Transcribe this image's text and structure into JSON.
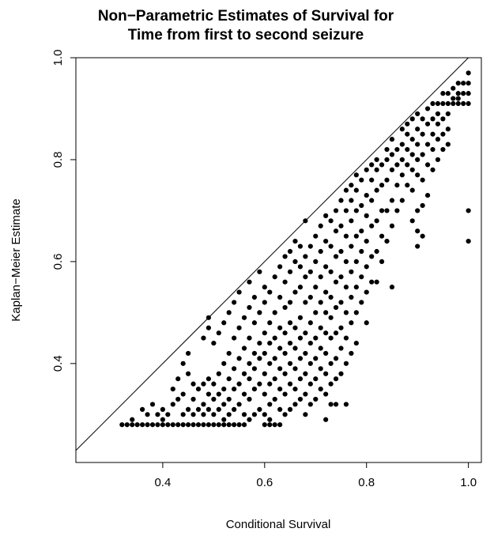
{
  "chart_data": {
    "type": "scatter",
    "title": [
      "Non−Parametric Estimates of Survival for",
      "Time from first to second seizure"
    ],
    "xlabel": "Conditional Survival",
    "ylabel": "Kaplan−Meier Estimate",
    "xlim": [
      0.2295,
      1.0254
    ],
    "ylim": [
      0.2059,
      1.0
    ],
    "xticks": [
      0.4,
      0.6,
      0.8,
      1.0
    ],
    "xtick_labels": [
      "0.4",
      "0.6",
      "0.8",
      "1.0"
    ],
    "yticks": [
      0.4,
      0.6,
      0.8,
      1.0
    ],
    "ytick_labels": [
      "0.4",
      "0.6",
      "0.8",
      "1.0"
    ],
    "reference_line": "y = x",
    "point_color": "#000000",
    "points": [
      [
        0.32,
        0.28
      ],
      [
        0.33,
        0.28
      ],
      [
        0.34,
        0.28
      ],
      [
        0.34,
        0.29
      ],
      [
        0.35,
        0.28
      ],
      [
        0.36,
        0.28
      ],
      [
        0.36,
        0.31
      ],
      [
        0.37,
        0.28
      ],
      [
        0.37,
        0.3
      ],
      [
        0.38,
        0.28
      ],
      [
        0.38,
        0.32
      ],
      [
        0.39,
        0.28
      ],
      [
        0.39,
        0.3
      ],
      [
        0.4,
        0.28
      ],
      [
        0.4,
        0.29
      ],
      [
        0.4,
        0.31
      ],
      [
        0.41,
        0.28
      ],
      [
        0.41,
        0.3
      ],
      [
        0.42,
        0.28
      ],
      [
        0.42,
        0.32
      ],
      [
        0.42,
        0.35
      ],
      [
        0.43,
        0.28
      ],
      [
        0.43,
        0.33
      ],
      [
        0.43,
        0.37
      ],
      [
        0.44,
        0.28
      ],
      [
        0.44,
        0.3
      ],
      [
        0.44,
        0.34
      ],
      [
        0.44,
        0.4
      ],
      [
        0.45,
        0.28
      ],
      [
        0.45,
        0.31
      ],
      [
        0.45,
        0.38
      ],
      [
        0.45,
        0.42
      ],
      [
        0.46,
        0.28
      ],
      [
        0.46,
        0.3
      ],
      [
        0.46,
        0.33
      ],
      [
        0.46,
        0.36
      ],
      [
        0.47,
        0.28
      ],
      [
        0.47,
        0.31
      ],
      [
        0.47,
        0.35
      ],
      [
        0.48,
        0.28
      ],
      [
        0.48,
        0.3
      ],
      [
        0.48,
        0.32
      ],
      [
        0.48,
        0.36
      ],
      [
        0.48,
        0.45
      ],
      [
        0.49,
        0.28
      ],
      [
        0.49,
        0.31
      ],
      [
        0.49,
        0.34
      ],
      [
        0.49,
        0.37
      ],
      [
        0.49,
        0.47
      ],
      [
        0.49,
        0.49
      ],
      [
        0.5,
        0.28
      ],
      [
        0.5,
        0.3
      ],
      [
        0.5,
        0.33
      ],
      [
        0.5,
        0.36
      ],
      [
        0.5,
        0.44
      ],
      [
        0.51,
        0.28
      ],
      [
        0.51,
        0.31
      ],
      [
        0.51,
        0.34
      ],
      [
        0.51,
        0.38
      ],
      [
        0.51,
        0.46
      ],
      [
        0.52,
        0.28
      ],
      [
        0.52,
        0.29
      ],
      [
        0.52,
        0.32
      ],
      [
        0.52,
        0.35
      ],
      [
        0.52,
        0.4
      ],
      [
        0.52,
        0.48
      ],
      [
        0.53,
        0.28
      ],
      [
        0.53,
        0.3
      ],
      [
        0.53,
        0.33
      ],
      [
        0.53,
        0.37
      ],
      [
        0.53,
        0.42
      ],
      [
        0.53,
        0.5
      ],
      [
        0.54,
        0.28
      ],
      [
        0.54,
        0.31
      ],
      [
        0.54,
        0.35
      ],
      [
        0.54,
        0.39
      ],
      [
        0.54,
        0.45
      ],
      [
        0.54,
        0.52
      ],
      [
        0.55,
        0.28
      ],
      [
        0.55,
        0.32
      ],
      [
        0.55,
        0.36
      ],
      [
        0.55,
        0.41
      ],
      [
        0.55,
        0.47
      ],
      [
        0.55,
        0.54
      ],
      [
        0.56,
        0.28
      ],
      [
        0.56,
        0.3
      ],
      [
        0.56,
        0.34
      ],
      [
        0.56,
        0.38
      ],
      [
        0.56,
        0.43
      ],
      [
        0.56,
        0.49
      ],
      [
        0.57,
        0.29
      ],
      [
        0.57,
        0.33
      ],
      [
        0.57,
        0.37
      ],
      [
        0.57,
        0.4
      ],
      [
        0.57,
        0.45
      ],
      [
        0.57,
        0.51
      ],
      [
        0.57,
        0.56
      ],
      [
        0.58,
        0.3
      ],
      [
        0.58,
        0.35
      ],
      [
        0.58,
        0.39
      ],
      [
        0.58,
        0.42
      ],
      [
        0.58,
        0.48
      ],
      [
        0.58,
        0.53
      ],
      [
        0.59,
        0.31
      ],
      [
        0.59,
        0.36
      ],
      [
        0.59,
        0.41
      ],
      [
        0.59,
        0.44
      ],
      [
        0.59,
        0.5
      ],
      [
        0.59,
        0.58
      ],
      [
        0.6,
        0.28
      ],
      [
        0.6,
        0.3
      ],
      [
        0.6,
        0.34
      ],
      [
        0.6,
        0.38
      ],
      [
        0.6,
        0.42
      ],
      [
        0.6,
        0.46
      ],
      [
        0.6,
        0.52
      ],
      [
        0.6,
        0.55
      ],
      [
        0.61,
        0.28
      ],
      [
        0.61,
        0.29
      ],
      [
        0.61,
        0.32
      ],
      [
        0.61,
        0.36
      ],
      [
        0.61,
        0.4
      ],
      [
        0.61,
        0.44
      ],
      [
        0.61,
        0.48
      ],
      [
        0.61,
        0.54
      ],
      [
        0.62,
        0.28
      ],
      [
        0.62,
        0.33
      ],
      [
        0.62,
        0.37
      ],
      [
        0.62,
        0.41
      ],
      [
        0.62,
        0.45
      ],
      [
        0.62,
        0.5
      ],
      [
        0.62,
        0.57
      ],
      [
        0.63,
        0.28
      ],
      [
        0.63,
        0.31
      ],
      [
        0.63,
        0.35
      ],
      [
        0.63,
        0.39
      ],
      [
        0.63,
        0.43
      ],
      [
        0.63,
        0.47
      ],
      [
        0.63,
        0.53
      ],
      [
        0.63,
        0.59
      ],
      [
        0.64,
        0.3
      ],
      [
        0.64,
        0.34
      ],
      [
        0.64,
        0.38
      ],
      [
        0.64,
        0.42
      ],
      [
        0.64,
        0.46
      ],
      [
        0.64,
        0.51
      ],
      [
        0.64,
        0.56
      ],
      [
        0.64,
        0.61
      ],
      [
        0.65,
        0.31
      ],
      [
        0.65,
        0.36
      ],
      [
        0.65,
        0.4
      ],
      [
        0.65,
        0.44
      ],
      [
        0.65,
        0.48
      ],
      [
        0.65,
        0.52
      ],
      [
        0.65,
        0.58
      ],
      [
        0.65,
        0.62
      ],
      [
        0.66,
        0.32
      ],
      [
        0.66,
        0.35
      ],
      [
        0.66,
        0.39
      ],
      [
        0.66,
        0.43
      ],
      [
        0.66,
        0.47
      ],
      [
        0.66,
        0.54
      ],
      [
        0.66,
        0.6
      ],
      [
        0.66,
        0.64
      ],
      [
        0.67,
        0.33
      ],
      [
        0.67,
        0.37
      ],
      [
        0.67,
        0.41
      ],
      [
        0.67,
        0.45
      ],
      [
        0.67,
        0.49
      ],
      [
        0.67,
        0.55
      ],
      [
        0.67,
        0.59
      ],
      [
        0.67,
        0.63
      ],
      [
        0.68,
        0.3
      ],
      [
        0.68,
        0.34
      ],
      [
        0.68,
        0.38
      ],
      [
        0.68,
        0.42
      ],
      [
        0.68,
        0.46
      ],
      [
        0.68,
        0.52
      ],
      [
        0.68,
        0.57
      ],
      [
        0.68,
        0.61
      ],
      [
        0.68,
        0.68
      ],
      [
        0.69,
        0.32
      ],
      [
        0.69,
        0.36
      ],
      [
        0.69,
        0.4
      ],
      [
        0.69,
        0.44
      ],
      [
        0.69,
        0.48
      ],
      [
        0.69,
        0.53
      ],
      [
        0.69,
        0.58
      ],
      [
        0.69,
        0.63
      ],
      [
        0.7,
        0.33
      ],
      [
        0.7,
        0.37
      ],
      [
        0.7,
        0.41
      ],
      [
        0.7,
        0.45
      ],
      [
        0.7,
        0.5
      ],
      [
        0.7,
        0.55
      ],
      [
        0.7,
        0.6
      ],
      [
        0.7,
        0.65
      ],
      [
        0.71,
        0.35
      ],
      [
        0.71,
        0.39
      ],
      [
        0.71,
        0.43
      ],
      [
        0.71,
        0.47
      ],
      [
        0.71,
        0.52
      ],
      [
        0.71,
        0.57
      ],
      [
        0.71,
        0.62
      ],
      [
        0.71,
        0.67
      ],
      [
        0.72,
        0.29
      ],
      [
        0.72,
        0.34
      ],
      [
        0.72,
        0.38
      ],
      [
        0.72,
        0.42
      ],
      [
        0.72,
        0.46
      ],
      [
        0.72,
        0.5
      ],
      [
        0.72,
        0.54
      ],
      [
        0.72,
        0.59
      ],
      [
        0.72,
        0.64
      ],
      [
        0.72,
        0.69
      ],
      [
        0.73,
        0.32
      ],
      [
        0.73,
        0.36
      ],
      [
        0.73,
        0.4
      ],
      [
        0.73,
        0.45
      ],
      [
        0.73,
        0.49
      ],
      [
        0.73,
        0.53
      ],
      [
        0.73,
        0.58
      ],
      [
        0.73,
        0.63
      ],
      [
        0.73,
        0.68
      ],
      [
        0.74,
        0.32
      ],
      [
        0.74,
        0.37
      ],
      [
        0.74,
        0.41
      ],
      [
        0.74,
        0.46
      ],
      [
        0.74,
        0.51
      ],
      [
        0.74,
        0.56
      ],
      [
        0.74,
        0.61
      ],
      [
        0.74,
        0.66
      ],
      [
        0.74,
        0.7
      ],
      [
        0.75,
        0.38
      ],
      [
        0.75,
        0.43
      ],
      [
        0.75,
        0.47
      ],
      [
        0.75,
        0.52
      ],
      [
        0.75,
        0.57
      ],
      [
        0.75,
        0.62
      ],
      [
        0.75,
        0.67
      ],
      [
        0.75,
        0.72
      ],
      [
        0.76,
        0.32
      ],
      [
        0.76,
        0.4
      ],
      [
        0.76,
        0.45
      ],
      [
        0.76,
        0.5
      ],
      [
        0.76,
        0.55
      ],
      [
        0.76,
        0.6
      ],
      [
        0.76,
        0.65
      ],
      [
        0.76,
        0.7
      ],
      [
        0.76,
        0.74
      ],
      [
        0.77,
        0.42
      ],
      [
        0.77,
        0.48
      ],
      [
        0.77,
        0.53
      ],
      [
        0.77,
        0.58
      ],
      [
        0.77,
        0.63
      ],
      [
        0.77,
        0.68
      ],
      [
        0.77,
        0.72
      ],
      [
        0.77,
        0.75
      ],
      [
        0.78,
        0.44
      ],
      [
        0.78,
        0.5
      ],
      [
        0.78,
        0.55
      ],
      [
        0.78,
        0.6
      ],
      [
        0.78,
        0.65
      ],
      [
        0.78,
        0.7
      ],
      [
        0.78,
        0.74
      ],
      [
        0.78,
        0.77
      ],
      [
        0.79,
        0.52
      ],
      [
        0.79,
        0.57
      ],
      [
        0.79,
        0.62
      ],
      [
        0.79,
        0.66
      ],
      [
        0.79,
        0.71
      ],
      [
        0.79,
        0.76
      ],
      [
        0.8,
        0.48
      ],
      [
        0.8,
        0.54
      ],
      [
        0.8,
        0.59
      ],
      [
        0.8,
        0.64
      ],
      [
        0.8,
        0.69
      ],
      [
        0.8,
        0.73
      ],
      [
        0.8,
        0.78
      ],
      [
        0.81,
        0.56
      ],
      [
        0.81,
        0.61
      ],
      [
        0.81,
        0.67
      ],
      [
        0.81,
        0.72
      ],
      [
        0.81,
        0.76
      ],
      [
        0.81,
        0.79
      ],
      [
        0.82,
        0.56
      ],
      [
        0.82,
        0.62
      ],
      [
        0.82,
        0.68
      ],
      [
        0.82,
        0.74
      ],
      [
        0.82,
        0.78
      ],
      [
        0.82,
        0.8
      ],
      [
        0.83,
        0.6
      ],
      [
        0.83,
        0.65
      ],
      [
        0.83,
        0.7
      ],
      [
        0.83,
        0.75
      ],
      [
        0.83,
        0.79
      ],
      [
        0.84,
        0.64
      ],
      [
        0.84,
        0.7
      ],
      [
        0.84,
        0.76
      ],
      [
        0.84,
        0.8
      ],
      [
        0.84,
        0.82
      ],
      [
        0.85,
        0.55
      ],
      [
        0.85,
        0.67
      ],
      [
        0.85,
        0.72
      ],
      [
        0.85,
        0.78
      ],
      [
        0.85,
        0.81
      ],
      [
        0.85,
        0.84
      ],
      [
        0.86,
        0.7
      ],
      [
        0.86,
        0.75
      ],
      [
        0.86,
        0.79
      ],
      [
        0.86,
        0.82
      ],
      [
        0.87,
        0.72
      ],
      [
        0.87,
        0.77
      ],
      [
        0.87,
        0.8
      ],
      [
        0.87,
        0.83
      ],
      [
        0.87,
        0.86
      ],
      [
        0.88,
        0.75
      ],
      [
        0.88,
        0.79
      ],
      [
        0.88,
        0.82
      ],
      [
        0.88,
        0.85
      ],
      [
        0.88,
        0.87
      ],
      [
        0.89,
        0.68
      ],
      [
        0.89,
        0.74
      ],
      [
        0.89,
        0.78
      ],
      [
        0.89,
        0.81
      ],
      [
        0.89,
        0.84
      ],
      [
        0.89,
        0.88
      ],
      [
        0.9,
        0.63
      ],
      [
        0.9,
        0.66
      ],
      [
        0.9,
        0.7
      ],
      [
        0.9,
        0.77
      ],
      [
        0.9,
        0.8
      ],
      [
        0.9,
        0.83
      ],
      [
        0.9,
        0.86
      ],
      [
        0.9,
        0.89
      ],
      [
        0.91,
        0.65
      ],
      [
        0.91,
        0.71
      ],
      [
        0.91,
        0.76
      ],
      [
        0.91,
        0.81
      ],
      [
        0.91,
        0.85
      ],
      [
        0.91,
        0.88
      ],
      [
        0.92,
        0.73
      ],
      [
        0.92,
        0.79
      ],
      [
        0.92,
        0.83
      ],
      [
        0.92,
        0.87
      ],
      [
        0.92,
        0.9
      ],
      [
        0.93,
        0.78
      ],
      [
        0.93,
        0.82
      ],
      [
        0.93,
        0.85
      ],
      [
        0.93,
        0.88
      ],
      [
        0.93,
        0.91
      ],
      [
        0.94,
        0.8
      ],
      [
        0.94,
        0.84
      ],
      [
        0.94,
        0.87
      ],
      [
        0.94,
        0.89
      ],
      [
        0.94,
        0.91
      ],
      [
        0.95,
        0.82
      ],
      [
        0.95,
        0.85
      ],
      [
        0.95,
        0.88
      ],
      [
        0.95,
        0.91
      ],
      [
        0.95,
        0.93
      ],
      [
        0.96,
        0.83
      ],
      [
        0.96,
        0.86
      ],
      [
        0.96,
        0.89
      ],
      [
        0.96,
        0.91
      ],
      [
        0.96,
        0.93
      ],
      [
        0.97,
        0.91
      ],
      [
        0.97,
        0.92
      ],
      [
        0.97,
        0.94
      ],
      [
        0.98,
        0.91
      ],
      [
        0.98,
        0.92
      ],
      [
        0.98,
        0.93
      ],
      [
        0.98,
        0.95
      ],
      [
        0.99,
        0.91
      ],
      [
        0.99,
        0.93
      ],
      [
        0.99,
        0.95
      ],
      [
        1.0,
        0.64
      ],
      [
        1.0,
        0.7
      ],
      [
        1.0,
        0.91
      ],
      [
        1.0,
        0.93
      ],
      [
        1.0,
        0.95
      ],
      [
        1.0,
        0.97
      ]
    ]
  }
}
